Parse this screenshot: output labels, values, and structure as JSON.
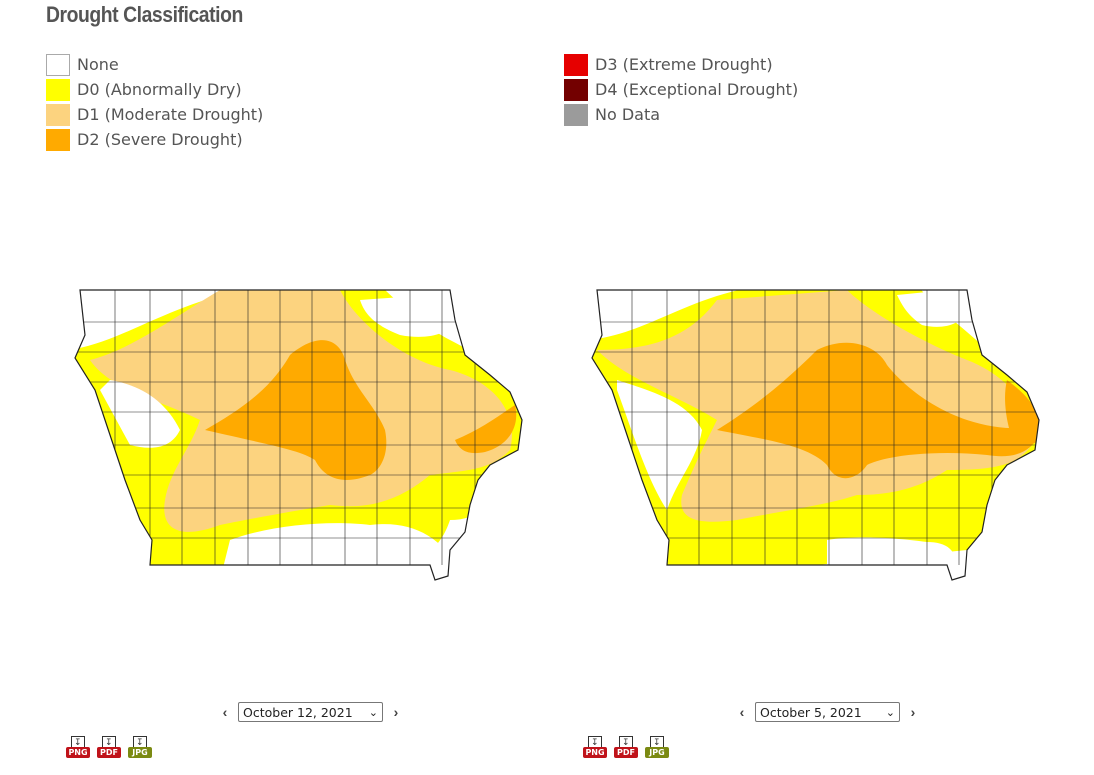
{
  "title": "Drought Classification",
  "legend": {
    "left": [
      {
        "label": "None",
        "color": "#ffffff"
      },
      {
        "label": "D0 (Abnormally Dry)",
        "color": "#ffff00"
      },
      {
        "label": "D1 (Moderate Drought)",
        "color": "#fcd37f"
      },
      {
        "label": "D2 (Severe Drought)",
        "color": "#ffaa00"
      }
    ],
    "right": [
      {
        "label": "D3 (Extreme Drought)",
        "color": "#e60000"
      },
      {
        "label": "D4 (Exceptional Drought)",
        "color": "#730000"
      },
      {
        "label": "No Data",
        "color": "#9b9b9b"
      }
    ]
  },
  "maps": {
    "left": {
      "date": "October 12, 2021"
    },
    "right": {
      "date": "October 5, 2021"
    }
  },
  "downloads": [
    {
      "label": "PNG",
      "color": "#c0131a"
    },
    {
      "label": "PDF",
      "color": "#c0131a"
    },
    {
      "label": "JPG",
      "color": "#7b8a12"
    }
  ],
  "icons": {
    "prev": "chevron-left-icon",
    "next": "chevron-right-icon",
    "dropdown": "chevron-down-icon"
  }
}
